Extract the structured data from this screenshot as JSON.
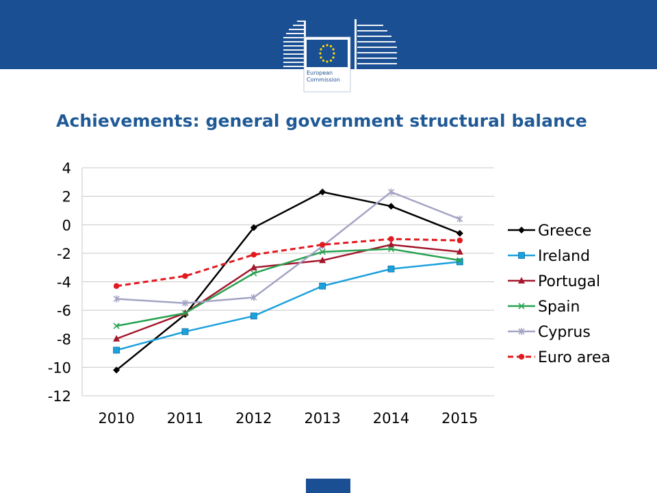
{
  "header": {
    "logo_line1": "European",
    "logo_line2": "Commission",
    "colors": {
      "band": "#1b4f93",
      "stars": "#ffdd00"
    }
  },
  "slide": {
    "title": "Achievements: general government structural balance"
  },
  "chart_data": {
    "type": "line",
    "title": "",
    "xlabel": "",
    "ylabel": "",
    "categories": [
      "2010",
      "2011",
      "2012",
      "2013",
      "2014",
      "2015"
    ],
    "ylim": [
      -12,
      4
    ],
    "yticks": [
      "4",
      "2",
      "0",
      "-2",
      "-4",
      "-6",
      "-8",
      "-10",
      "-12"
    ],
    "grid": true,
    "legend_position": "right",
    "series": [
      {
        "name": "Greece",
        "values": [
          -10.2,
          -6.3,
          -0.2,
          2.3,
          1.3,
          -0.6
        ],
        "color": "#000000",
        "marker": "diamond",
        "dashed": false
      },
      {
        "name": "Ireland",
        "values": [
          -8.8,
          -7.5,
          -6.4,
          -4.3,
          -3.1,
          -2.6
        ],
        "color": "#1ba1dc",
        "marker": "square",
        "dashed": false
      },
      {
        "name": "Portugal",
        "values": [
          -8.0,
          -6.2,
          -3.0,
          -2.5,
          -1.4,
          -1.9
        ],
        "color": "#a3162b",
        "marker": "triangle",
        "dashed": false
      },
      {
        "name": "Spain",
        "values": [
          -7.1,
          -6.2,
          -3.4,
          -1.9,
          -1.7,
          -2.5
        ],
        "color": "#27a150",
        "marker": "x",
        "dashed": false
      },
      {
        "name": "Cyprus",
        "values": [
          -5.2,
          -5.5,
          -5.1,
          -1.5,
          2.3,
          0.4
        ],
        "color": "#a3a3c4",
        "marker": "star",
        "dashed": false
      },
      {
        "name": "Euro area",
        "values": [
          -4.3,
          -3.6,
          -2.1,
          -1.4,
          -1.0,
          -1.1
        ],
        "color": "#e2191f",
        "marker": "circle",
        "dashed": true
      }
    ]
  }
}
